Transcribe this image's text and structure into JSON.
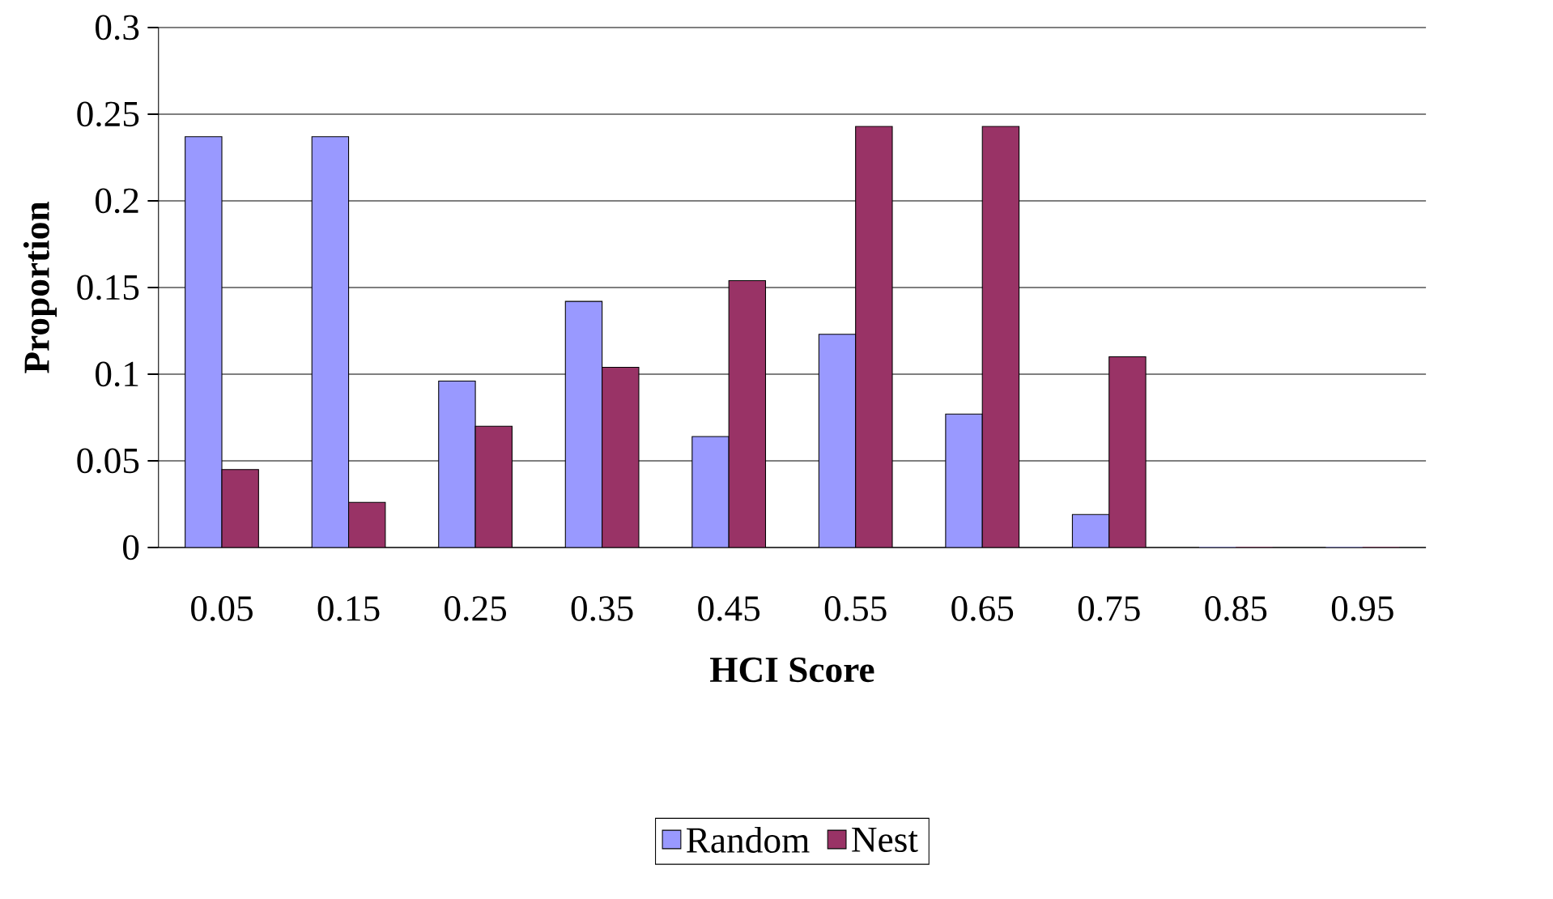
{
  "chart_data": {
    "type": "bar",
    "xlabel": "HCI Score",
    "ylabel": "Proportion",
    "categories": [
      "0.05",
      "0.15",
      "0.25",
      "0.35",
      "0.45",
      "0.55",
      "0.65",
      "0.75",
      "0.85",
      "0.95"
    ],
    "series": [
      {
        "name": "Random",
        "color": "#9999ff",
        "values": [
          0.237,
          0.237,
          0.096,
          0.142,
          0.064,
          0.123,
          0.077,
          0.019,
          0,
          0
        ]
      },
      {
        "name": "Nest",
        "color": "#993366",
        "values": [
          0.045,
          0.026,
          0.07,
          0.104,
          0.154,
          0.243,
          0.243,
          0.11,
          0,
          0
        ]
      }
    ],
    "ylim": [
      0,
      0.3
    ],
    "yticks": [
      0,
      0.05,
      0.1,
      0.15,
      0.2,
      0.25,
      0.3
    ],
    "grid": "y",
    "legend": "bottom"
  }
}
